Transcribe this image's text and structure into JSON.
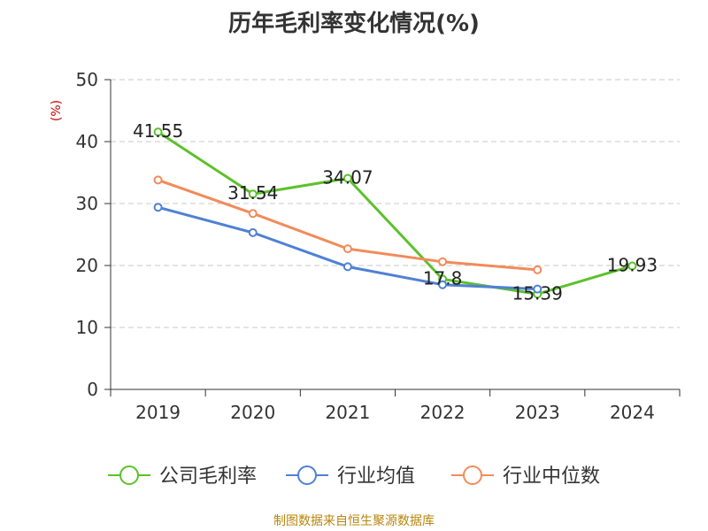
{
  "title": "历年毛利率变化情况(%)",
  "footer": "制图数据来自恒生聚源数据库",
  "chart_data": {
    "type": "line",
    "title": "历年毛利率变化情况(%)",
    "ylabel": "(%)",
    "ylim": [
      0,
      50
    ],
    "yticks": [
      0,
      10,
      20,
      30,
      40,
      50
    ],
    "categories": [
      "2019",
      "2020",
      "2021",
      "2022",
      "2023",
      "2024"
    ],
    "grid": true,
    "legend_position": "bottom",
    "series": [
      {
        "name": "公司毛利率",
        "color": "#5cc12c",
        "labeled": true,
        "values": [
          41.55,
          31.54,
          34.07,
          17.8,
          15.39,
          19.93
        ]
      },
      {
        "name": "行业均值",
        "color": "#4f81d4",
        "labeled": false,
        "values": [
          29.4,
          25.3,
          19.8,
          16.9,
          16.2,
          null
        ]
      },
      {
        "name": "行业中位数",
        "color": "#f28b5a",
        "labeled": false,
        "values": [
          33.8,
          28.4,
          22.7,
          20.6,
          19.3,
          null
        ]
      }
    ]
  }
}
